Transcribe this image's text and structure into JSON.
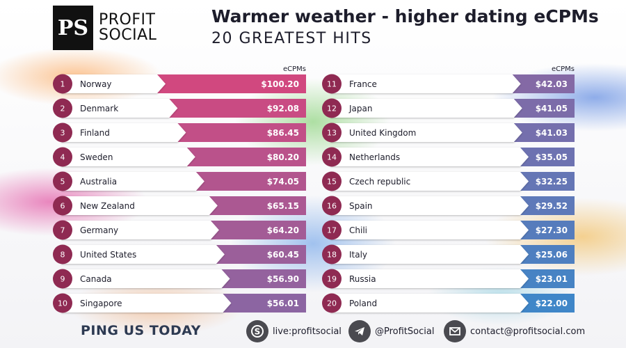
{
  "brand": {
    "logo_mark": "PS",
    "name_line1": "PROFIT",
    "name_line2": "SOCIAL"
  },
  "header": {
    "title": "Warmer weather - higher dating eCPMs",
    "subtitle": "20 GREATEST HITS"
  },
  "colors": {
    "rank_badge": "#8f2a52",
    "bar_top": "#d1487f",
    "bar_bottom": "#3f86c8"
  },
  "chart_data": [
    {
      "type": "bar",
      "value_header": "eCPMs",
      "categories": [
        "Norway",
        "Denmark",
        "Finland",
        "Sweden",
        "Australia",
        "New Zealand",
        "Germany",
        "United States",
        "Canada",
        "Singapore"
      ],
      "ranks": [
        "1",
        "2",
        "3",
        "4",
        "5",
        "6",
        "7",
        "8",
        "9",
        "10"
      ],
      "values": [
        100.2,
        92.08,
        86.45,
        80.2,
        74.05,
        65.15,
        64.2,
        60.45,
        56.9,
        56.01
      ],
      "labels": [
        "$100.20",
        "$92.08",
        "$86.45",
        "$80.20",
        "$74.05",
        "$65.15",
        "$64.20",
        "$60.45",
        "$56.90",
        "$56.01"
      ]
    },
    {
      "type": "bar",
      "value_header": "eCPMs",
      "categories": [
        "France",
        "Japan",
        "United Kingdom",
        "Netherlands",
        "Czech republic",
        "Spain",
        "Chili",
        "Italy",
        "Russia",
        "Poland"
      ],
      "ranks": [
        "11",
        "12",
        "13",
        "14",
        "15",
        "16",
        "17",
        "18",
        "19",
        "20"
      ],
      "values": [
        42.03,
        41.05,
        41.03,
        35.05,
        32.25,
        29.52,
        27.3,
        25.06,
        23.01,
        22.0
      ],
      "labels": [
        "$42.03",
        "$41.05",
        "$41.03",
        "$35.05",
        "$32.25",
        "$29.52",
        "$27.30",
        "$25.06",
        "$23.01",
        "$22.00"
      ]
    }
  ],
  "footer": {
    "cta": "PING US TODAY",
    "skype": {
      "icon": "skype-icon",
      "text": "live:profitsocial"
    },
    "telegram": {
      "icon": "telegram-icon",
      "text": "@ProfitSocial"
    },
    "email": {
      "icon": "envelope-icon",
      "text": "contact@profitsocial.com"
    }
  }
}
